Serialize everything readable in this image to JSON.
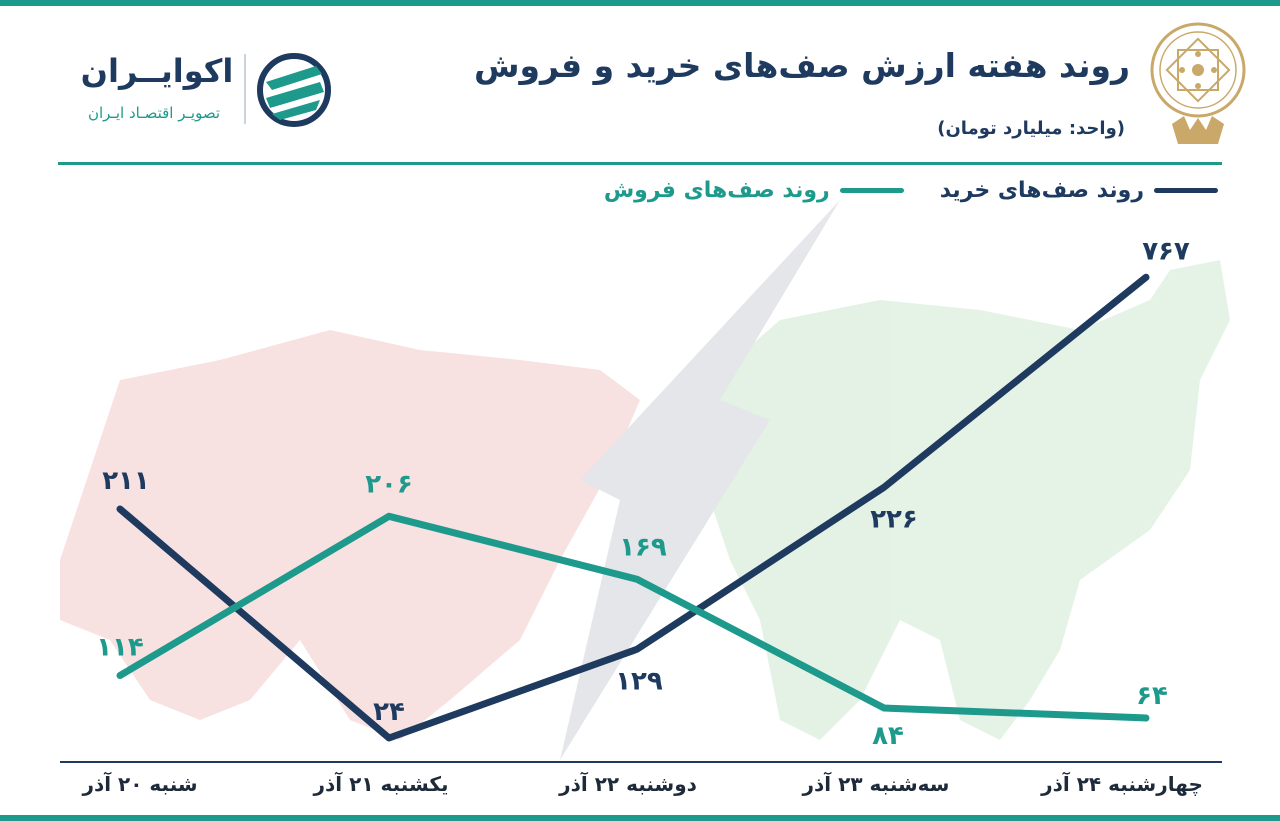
{
  "header": {
    "title": "روند هفته ارزش صف‌های خرید  و فروش",
    "subtitle": "(واحد: میلیارد تومان)"
  },
  "brand": {
    "name": "اکوایــران",
    "tagline": "تصویـر اقتصـاد ایـران",
    "color": "#1e3a5f"
  },
  "chart_data": {
    "type": "line",
    "categories": [
      "شنبه ۲۰ آذر",
      "یکشنبه ۲۱ آذر",
      "دوشنبه ۲۲ آذر",
      "سه‌شنبه ۲۳ آذر",
      "چهارشنبه ۲۴ آذر"
    ],
    "series": [
      {
        "name": "روند صف‌های خرید",
        "color": "#1e3a5f",
        "values": [
          211,
          24,
          129,
          226,
          767
        ],
        "labels": [
          "۲۱۱",
          "۲۴",
          "۱۲۹",
          "۲۲۶",
          "۷۶۷"
        ]
      },
      {
        "name": "روند صف‌های فروش",
        "color": "#1d9a8c",
        "values": [
          114,
          206,
          169,
          84,
          64
        ],
        "labels": [
          "۱۱۴",
          "۲۰۶",
          "۱۶۹",
          "۸۴",
          "۶۴"
        ]
      }
    ],
    "legend_position": "top-right",
    "grid": false
  }
}
